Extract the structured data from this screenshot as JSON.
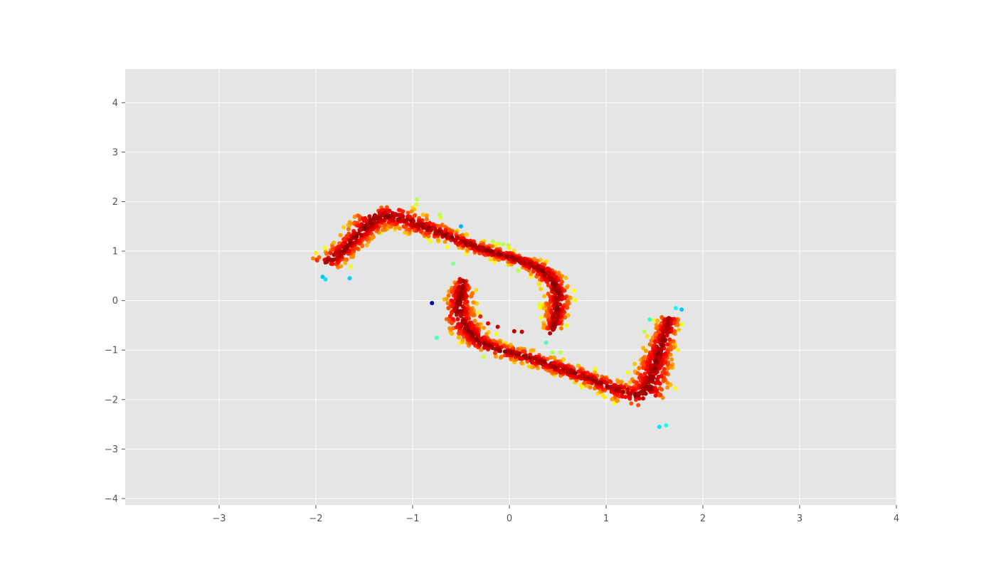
{
  "chart_data": {
    "type": "scatter",
    "title": "",
    "xlabel": "",
    "ylabel": "",
    "xlim": [
      -3.97,
      4.0
    ],
    "ylim": [
      -4.13,
      4.68
    ],
    "grid": true,
    "style": "ggplot",
    "background_color": "#e5e5e5",
    "grid_color": "#ffffff",
    "colormap": "jet",
    "x_ticks": [
      -3,
      -2,
      -1,
      0,
      1,
      2,
      3,
      4
    ],
    "x_tick_labels": [
      "−3",
      "−2",
      "−1",
      "0",
      "1",
      "2",
      "3",
      "4"
    ],
    "y_ticks": [
      -4,
      -3,
      -2,
      -1,
      0,
      1,
      2,
      3,
      4
    ],
    "y_tick_labels": [
      "−4",
      "−3",
      "−2",
      "−1",
      "0",
      "1",
      "2",
      "3",
      "4"
    ],
    "series": [
      {
        "shape": "upper arc of a two-armed spiral",
        "color_by": "point density (jet colormap)",
        "path": [
          [
            -1.9,
            0.75
          ],
          [
            -1.75,
            0.95
          ],
          [
            -1.55,
            1.35
          ],
          [
            -1.38,
            1.68
          ],
          [
            -1.22,
            1.72
          ],
          [
            -1.0,
            1.58
          ],
          [
            -0.75,
            1.4
          ],
          [
            -0.5,
            1.2
          ],
          [
            -0.25,
            1.02
          ],
          [
            0.0,
            0.88
          ],
          [
            0.2,
            0.75
          ],
          [
            0.35,
            0.6
          ],
          [
            0.45,
            0.4
          ],
          [
            0.5,
            0.15
          ],
          [
            0.5,
            -0.1
          ],
          [
            0.48,
            -0.35
          ],
          [
            0.45,
            -0.58
          ]
        ],
        "halfwidth": [
          0.12,
          0.1,
          0.11,
          0.16,
          0.17,
          0.13,
          0.1,
          0.08,
          0.08,
          0.08,
          0.08,
          0.09,
          0.09,
          0.09,
          0.09,
          0.08,
          0.06
        ],
        "points": 1050
      },
      {
        "shape": "lower arc of a two-armed spiral",
        "color_by": "point density (jet colormap)",
        "path": [
          [
            -0.48,
            0.42
          ],
          [
            -0.5,
            0.2
          ],
          [
            -0.52,
            -0.05
          ],
          [
            -0.52,
            -0.3
          ],
          [
            -0.45,
            -0.55
          ],
          [
            -0.3,
            -0.85
          ],
          [
            -0.1,
            -1.0
          ],
          [
            0.2,
            -1.15
          ],
          [
            0.5,
            -1.35
          ],
          [
            0.8,
            -1.55
          ],
          [
            1.05,
            -1.75
          ],
          [
            1.25,
            -1.88
          ],
          [
            1.38,
            -1.92
          ],
          [
            1.45,
            -1.7
          ],
          [
            1.5,
            -1.35
          ],
          [
            1.55,
            -1.0
          ],
          [
            1.62,
            -0.6
          ],
          [
            1.65,
            -0.35
          ]
        ],
        "halfwidth": [
          0.05,
          0.09,
          0.1,
          0.11,
          0.11,
          0.1,
          0.09,
          0.09,
          0.09,
          0.09,
          0.1,
          0.14,
          0.18,
          0.15,
          0.12,
          0.1,
          0.08,
          0.07
        ],
        "points": 1150
      },
      {
        "shape": "sparse trail near the center",
        "points_xy": [
          [
            -0.8,
            -0.05
          ],
          [
            -0.3,
            -0.32
          ],
          [
            -0.22,
            -0.46
          ],
          [
            -0.12,
            -0.53
          ],
          [
            0.05,
            -0.62
          ],
          [
            0.13,
            -0.63
          ],
          [
            0.42,
            -0.66
          ]
        ],
        "values": [
          0.05,
          0.85,
          0.9,
          0.92,
          0.95,
          0.93,
          0.95
        ]
      },
      {
        "shape": "isolated low-density points",
        "points_xy": [
          [
            -1.93,
            0.48
          ],
          [
            -1.9,
            0.43
          ],
          [
            -1.65,
            0.45
          ],
          [
            -0.5,
            1.5
          ],
          [
            1.78,
            -0.18
          ],
          [
            1.72,
            -0.15
          ],
          [
            1.55,
            -2.55
          ],
          [
            1.62,
            -2.52
          ],
          [
            1.45,
            -0.38
          ],
          [
            0.38,
            -0.85
          ],
          [
            -0.75,
            -0.75
          ],
          [
            -0.58,
            0.75
          ]
        ],
        "values": [
          0.32,
          0.35,
          0.33,
          0.3,
          0.32,
          0.38,
          0.35,
          0.4,
          0.42,
          0.45,
          0.45,
          0.5
        ]
      }
    ]
  }
}
